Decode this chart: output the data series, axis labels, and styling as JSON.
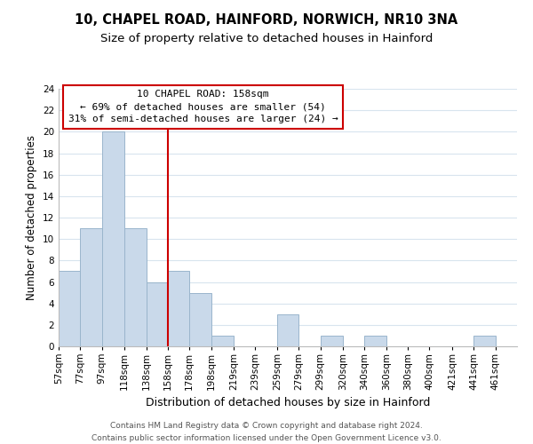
{
  "title": "10, CHAPEL ROAD, HAINFORD, NORWICH, NR10 3NA",
  "subtitle": "Size of property relative to detached houses in Hainford",
  "xlabel": "Distribution of detached houses by size in Hainford",
  "ylabel": "Number of detached properties",
  "bin_labels": [
    "57sqm",
    "77sqm",
    "97sqm",
    "118sqm",
    "138sqm",
    "158sqm",
    "178sqm",
    "198sqm",
    "219sqm",
    "239sqm",
    "259sqm",
    "279sqm",
    "299sqm",
    "320sqm",
    "340sqm",
    "360sqm",
    "380sqm",
    "400sqm",
    "421sqm",
    "441sqm",
    "461sqm"
  ],
  "bin_edges": [
    57,
    77,
    97,
    118,
    138,
    158,
    178,
    198,
    219,
    239,
    259,
    279,
    299,
    320,
    340,
    360,
    380,
    400,
    421,
    441,
    461,
    481
  ],
  "counts": [
    7,
    11,
    20,
    11,
    6,
    7,
    5,
    1,
    0,
    0,
    3,
    0,
    1,
    0,
    1,
    0,
    0,
    0,
    0,
    1,
    0
  ],
  "bar_color": "#c9d9ea",
  "bar_edge_color": "#9ab5cc",
  "ref_line_x": 158,
  "ref_line_color": "#cc0000",
  "annotation_title": "10 CHAPEL ROAD: 158sqm",
  "annotation_line1": "← 69% of detached houses are smaller (54)",
  "annotation_line2": "31% of semi-detached houses are larger (24) →",
  "annotation_box_facecolor": "#ffffff",
  "annotation_box_edgecolor": "#cc0000",
  "ylim": [
    0,
    24
  ],
  "yticks": [
    0,
    2,
    4,
    6,
    8,
    10,
    12,
    14,
    16,
    18,
    20,
    22,
    24
  ],
  "footer_line1": "Contains HM Land Registry data © Crown copyright and database right 2024.",
  "footer_line2": "Contains public sector information licensed under the Open Government Licence v3.0.",
  "title_fontsize": 10.5,
  "subtitle_fontsize": 9.5,
  "xlabel_fontsize": 9,
  "ylabel_fontsize": 8.5,
  "tick_fontsize": 7.5,
  "annotation_fontsize": 8,
  "footer_fontsize": 6.5,
  "grid_color": "#d8e4ee",
  "spine_color": "#bbbbbb"
}
